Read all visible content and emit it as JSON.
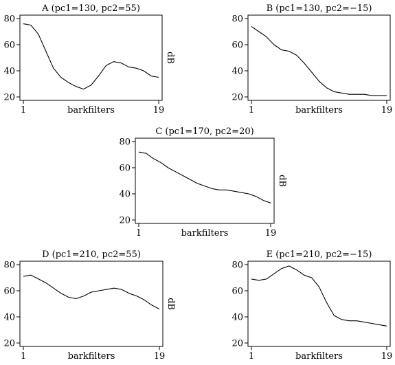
{
  "chart_data": [
    {
      "type": "line",
      "title": "A (pc1=130, pc2=55)",
      "xlabel": "barkfilters",
      "ylabel": "dB",
      "xlim": [
        1,
        19
      ],
      "ylim": [
        20,
        80
      ],
      "xticks": [
        1,
        19
      ],
      "yticks": [
        20,
        40,
        60,
        80
      ],
      "x": [
        1,
        2,
        3,
        4,
        5,
        6,
        7,
        8,
        9,
        10,
        11,
        12,
        13,
        14,
        15,
        16,
        17,
        18,
        19
      ],
      "y": [
        76,
        75,
        68,
        55,
        42,
        35,
        31,
        28,
        26,
        29,
        36,
        44,
        47,
        46,
        43,
        42,
        40,
        36,
        35
      ]
    },
    {
      "type": "line",
      "title": "B (pc1=130, pc2=−15)",
      "xlabel": "barkfilters",
      "ylabel": "dB",
      "xlim": [
        1,
        19
      ],
      "ylim": [
        20,
        80
      ],
      "xticks": [
        1,
        19
      ],
      "yticks": [
        20,
        40,
        60,
        80
      ],
      "x": [
        1,
        2,
        3,
        4,
        5,
        6,
        7,
        8,
        9,
        10,
        11,
        12,
        13,
        14,
        15,
        16,
        17,
        18,
        19
      ],
      "y": [
        74,
        70,
        66,
        60,
        56,
        55,
        52,
        46,
        39,
        32,
        27,
        24,
        23,
        22,
        22,
        22,
        21,
        21,
        21
      ]
    },
    {
      "type": "line",
      "title": "C (pc1=170, pc2=20)",
      "xlabel": "barkfilters",
      "ylabel": "dB",
      "xlim": [
        1,
        19
      ],
      "ylim": [
        20,
        80
      ],
      "xticks": [
        1,
        19
      ],
      "yticks": [
        20,
        40,
        60,
        80
      ],
      "x": [
        1,
        2,
        3,
        4,
        5,
        6,
        7,
        8,
        9,
        10,
        11,
        12,
        13,
        14,
        15,
        16,
        17,
        18,
        19
      ],
      "y": [
        72,
        71,
        67,
        64,
        60,
        57,
        54,
        51,
        48,
        46,
        44,
        43,
        43,
        42,
        41,
        40,
        38,
        35,
        33
      ]
    },
    {
      "type": "line",
      "title": "D (pc1=210, pc2=55)",
      "xlabel": "barkfilters",
      "ylabel": "dB",
      "xlim": [
        1,
        19
      ],
      "ylim": [
        20,
        80
      ],
      "xticks": [
        1,
        19
      ],
      "yticks": [
        20,
        40,
        60,
        80
      ],
      "x": [
        1,
        2,
        3,
        4,
        5,
        6,
        7,
        8,
        9,
        10,
        11,
        12,
        13,
        14,
        15,
        16,
        17,
        18,
        19
      ],
      "y": [
        71,
        72,
        69,
        66,
        62,
        58,
        55,
        54,
        56,
        59,
        60,
        61,
        62,
        61,
        58,
        56,
        53,
        49,
        46
      ]
    },
    {
      "type": "line",
      "title": "E (pc1=210, pc2=−15)",
      "xlabel": "barkfilters",
      "ylabel": "dB",
      "xlim": [
        1,
        19
      ],
      "ylim": [
        20,
        80
      ],
      "xticks": [
        1,
        19
      ],
      "yticks": [
        20,
        40,
        60,
        80
      ],
      "x": [
        1,
        2,
        3,
        4,
        5,
        6,
        7,
        8,
        9,
        10,
        11,
        12,
        13,
        14,
        15,
        16,
        17,
        18,
        19
      ],
      "y": [
        69,
        68,
        69,
        73,
        77,
        79,
        76,
        72,
        70,
        63,
        51,
        41,
        38,
        37,
        37,
        36,
        35,
        34,
        33
      ]
    }
  ]
}
